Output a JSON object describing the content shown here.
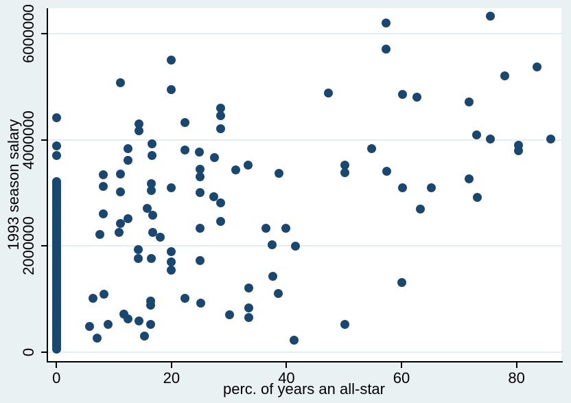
{
  "figure": {
    "background_color": "#eaf1f3",
    "plot_background_color": "#ffffff",
    "grid_color": "#e6edf0",
    "marker_color": "#1a476f",
    "axis_color": "#000000"
  },
  "chart_data": {
    "type": "scatter",
    "title": "",
    "xlabel": "perc. of years an all-star",
    "ylabel": "1993 season salary",
    "legend": "none",
    "grid": "horizontal",
    "xlim": [
      -1.7,
      87.8
    ],
    "ylim": [
      -168000,
      6479000
    ],
    "x_ticks": [
      {
        "value": 0,
        "label": "0"
      },
      {
        "value": 20,
        "label": "20"
      },
      {
        "value": 40,
        "label": "40"
      },
      {
        "value": 60,
        "label": "60"
      },
      {
        "value": 80,
        "label": "80"
      }
    ],
    "y_ticks": [
      {
        "value": 0,
        "label": "0"
      },
      {
        "value": 2000000,
        "label": "2000000"
      },
      {
        "value": 4000000,
        "label": "4000000"
      },
      {
        "value": 6000000,
        "label": "6000000"
      }
    ],
    "zero_column_strip": {
      "x": 0,
      "salary_from": 60000,
      "salary_to": 3230000,
      "step": 35000,
      "note": "dense overlapping column of observations at x=0"
    },
    "points": [
      [
        0,
        4420000
      ],
      [
        0,
        3890000
      ],
      [
        0,
        3700000
      ],
      [
        57.3,
        6200000
      ],
      [
        75.4,
        6330000
      ],
      [
        57.3,
        5710000
      ],
      [
        83.6,
        5370000
      ],
      [
        78.0,
        5210000
      ],
      [
        20.0,
        5500000
      ],
      [
        11.1,
        5070000
      ],
      [
        20.0,
        4950000
      ],
      [
        47.3,
        4880000
      ],
      [
        60.2,
        4850000
      ],
      [
        62.7,
        4800000
      ],
      [
        71.8,
        4720000
      ],
      [
        28.6,
        4600000
      ],
      [
        28.6,
        4460000
      ],
      [
        28.6,
        4210000
      ],
      [
        22.3,
        4330000
      ],
      [
        14.3,
        4300000
      ],
      [
        14.3,
        4170000
      ],
      [
        73.1,
        4090000
      ],
      [
        75.4,
        4010000
      ],
      [
        86.0,
        4010000
      ],
      [
        80.3,
        3900000
      ],
      [
        80.3,
        3800000
      ],
      [
        54.8,
        3830000
      ],
      [
        57.4,
        3410000
      ],
      [
        50.1,
        3530000
      ],
      [
        50.1,
        3380000
      ],
      [
        60.2,
        3100000
      ],
      [
        65.2,
        3100000
      ],
      [
        71.8,
        3270000
      ],
      [
        73.2,
        2910000
      ],
      [
        63.3,
        2700000
      ],
      [
        16.6,
        3920000
      ],
      [
        16.6,
        3710000
      ],
      [
        12.5,
        3840000
      ],
      [
        12.5,
        3610000
      ],
      [
        22.3,
        3810000
      ],
      [
        24.9,
        3770000
      ],
      [
        27.5,
        3670000
      ],
      [
        31.2,
        3440000
      ],
      [
        33.3,
        3520000
      ],
      [
        38.7,
        3370000
      ],
      [
        8.2,
        3340000
      ],
      [
        11.1,
        3350000
      ],
      [
        8.2,
        3120000
      ],
      [
        11.1,
        3020000
      ],
      [
        16.5,
        3170000
      ],
      [
        16.5,
        3040000
      ],
      [
        20.0,
        3100000
      ],
      [
        25.0,
        3450000
      ],
      [
        25.0,
        3310000
      ],
      [
        25.0,
        3010000
      ],
      [
        27.3,
        2930000
      ],
      [
        28.6,
        2810000
      ],
      [
        28.6,
        2460000
      ],
      [
        8.2,
        2610000
      ],
      [
        11.1,
        2420000
      ],
      [
        12.5,
        2510000
      ],
      [
        10.9,
        2260000
      ],
      [
        7.5,
        2220000
      ],
      [
        15.8,
        2710000
      ],
      [
        16.7,
        2580000
      ],
      [
        16.7,
        2260000
      ],
      [
        18.1,
        2160000
      ],
      [
        14.2,
        1930000
      ],
      [
        14.2,
        1760000
      ],
      [
        16.5,
        1760000
      ],
      [
        20.0,
        1890000
      ],
      [
        20.0,
        1700000
      ],
      [
        20.0,
        1550000
      ],
      [
        25.0,
        2330000
      ],
      [
        25.0,
        1730000
      ],
      [
        36.4,
        2330000
      ],
      [
        39.9,
        2330000
      ],
      [
        37.5,
        2030000
      ],
      [
        41.6,
        2000000
      ],
      [
        37.6,
        1430000
      ],
      [
        33.5,
        1210000
      ],
      [
        6.4,
        1020000
      ],
      [
        8.3,
        1090000
      ],
      [
        5.7,
        490000
      ],
      [
        9.0,
        520000
      ],
      [
        7.1,
        260000
      ],
      [
        11.7,
        720000
      ],
      [
        12.5,
        630000
      ],
      [
        14.3,
        590000
      ],
      [
        16.4,
        960000
      ],
      [
        16.4,
        890000
      ],
      [
        16.4,
        530000
      ],
      [
        15.3,
        310000
      ],
      [
        22.3,
        1020000
      ],
      [
        25.1,
        930000
      ],
      [
        30.1,
        700000
      ],
      [
        33.5,
        830000
      ],
      [
        33.5,
        650000
      ],
      [
        38.6,
        1100000
      ],
      [
        41.3,
        230000
      ],
      [
        50.2,
        520000
      ],
      [
        60.1,
        1310000
      ]
    ]
  }
}
